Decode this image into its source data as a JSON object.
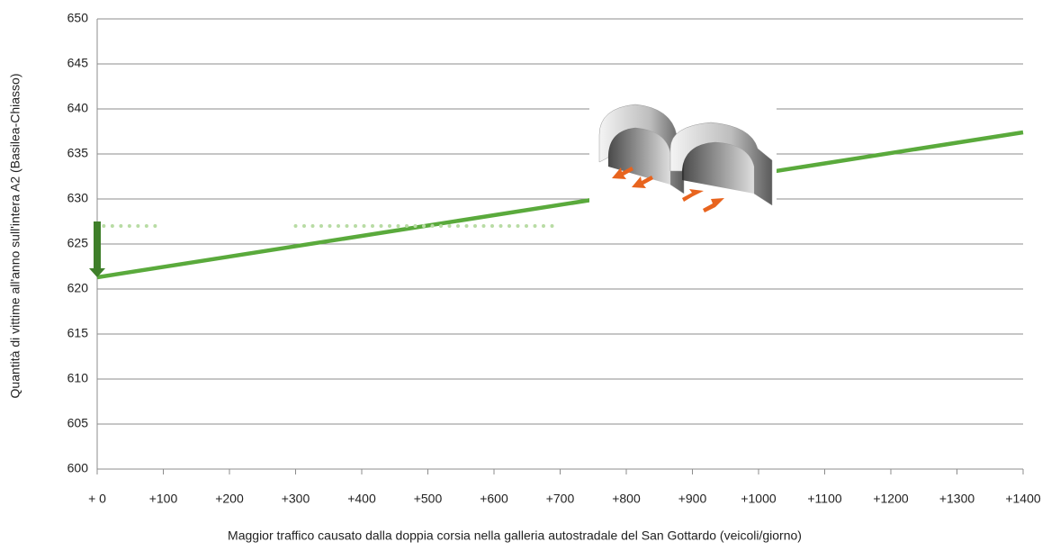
{
  "chart_data": {
    "type": "line",
    "x_label": "Maggior traffico causato dalla doppia corsia nella galleria autostradale del San Gottardo (veicoli/giorno)",
    "y_label": "Quantità di vittime all'anno sull'intera A2  (Basilea-Chiasso)",
    "xlim": [
      0,
      1400
    ],
    "ylim": [
      600,
      650
    ],
    "xticks": [
      {
        "value": 0,
        "label": "+ 0"
      },
      {
        "value": 100,
        "label": "+100"
      },
      {
        "value": 200,
        "label": "+200"
      },
      {
        "value": 300,
        "label": "+300"
      },
      {
        "value": 400,
        "label": "+400"
      },
      {
        "value": 500,
        "label": "+500"
      },
      {
        "value": 600,
        "label": "+600"
      },
      {
        "value": 700,
        "label": "+700"
      },
      {
        "value": 800,
        "label": "+800"
      },
      {
        "value": 900,
        "label": "+900"
      },
      {
        "value": 1000,
        "label": "+1000"
      },
      {
        "value": 1100,
        "label": "+1100"
      },
      {
        "value": 1200,
        "label": "+1200"
      },
      {
        "value": 1300,
        "label": "+1300"
      },
      {
        "value": 1400,
        "label": "+1400"
      }
    ],
    "yticks": [
      600,
      605,
      610,
      615,
      620,
      625,
      630,
      635,
      640,
      645,
      650
    ],
    "grid": true,
    "series": [
      {
        "color": "#5aaa3c",
        "style": "solid",
        "x": [
          0,
          1400
        ],
        "values": [
          621.3,
          637.4
        ]
      },
      {
        "color": "#b8dca4",
        "style": "dotted",
        "x": [
          10,
          100,
          200,
          300,
          690
        ],
        "values": [
          627,
          627,
          null,
          627,
          627
        ]
      }
    ],
    "arrow": {
      "color": "#3f7f2a",
      "x": 0,
      "from": 627.5,
      "to": 621.3
    }
  }
}
